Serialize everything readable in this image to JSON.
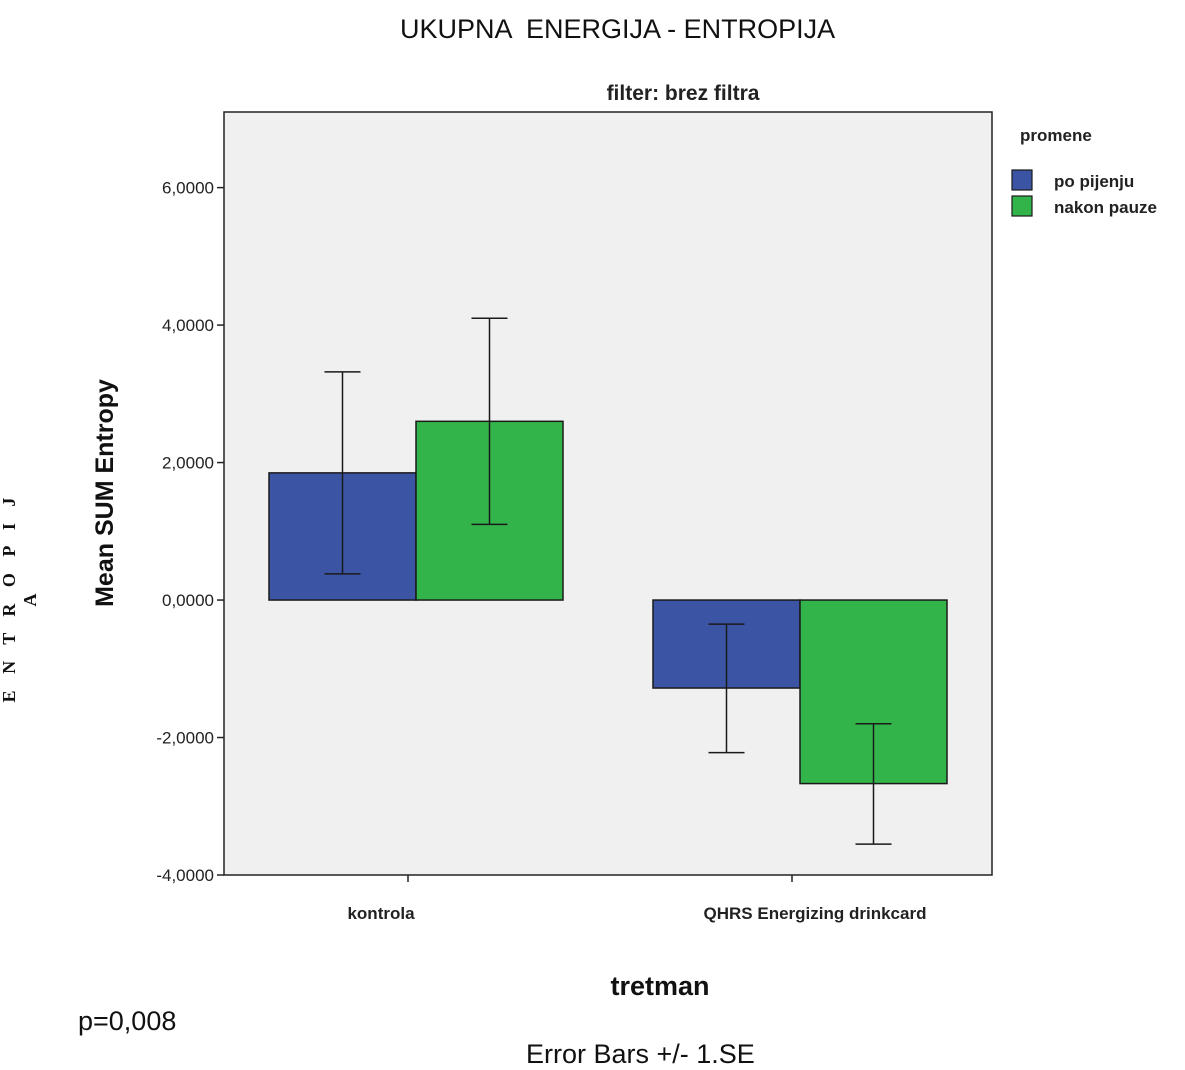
{
  "page": {
    "title": "UKUPNA  ENERGIJA - ENTROPIJA",
    "side_label": "E N T R O P I J A",
    "p_value": "p=0,008",
    "error_bars_note": "Error Bars +/- 1.SE"
  },
  "chart_data": {
    "type": "bar",
    "title": "filter: brez filtra",
    "xlabel": "tretman",
    "ylabel": "Mean SUM Entropy",
    "ylim": [
      -4,
      7.1
    ],
    "yticks": [
      6,
      4,
      2,
      0,
      -2,
      -4
    ],
    "ytick_labels": [
      "6,0000",
      "4,0000",
      "2,0000",
      "0,0000",
      "-2,0000",
      "-4,0000"
    ],
    "categories": [
      "kontrola",
      "QHRS Energizing drinkcard"
    ],
    "legend_title": "promene",
    "legend_position": "right",
    "series": [
      {
        "name": "po pijenju",
        "color": "#3b55a4",
        "values": [
          1.85,
          -1.28
        ],
        "error_low": [
          0.38,
          -2.22
        ],
        "error_high": [
          3.32,
          -0.35
        ]
      },
      {
        "name": "nakon pauze",
        "color": "#33b44a",
        "values": [
          2.6,
          -2.67
        ],
        "error_low": [
          1.1,
          -3.55
        ],
        "error_high": [
          4.1,
          -1.8
        ]
      }
    ],
    "plot_background": "#f0f0f0",
    "grid": false
  }
}
